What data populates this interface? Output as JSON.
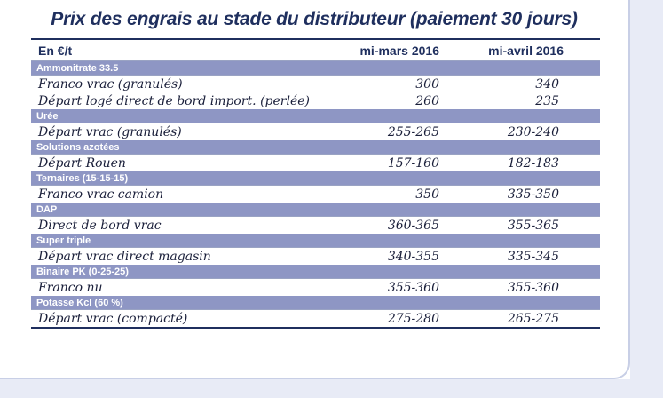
{
  "title": "Prix des engrais au stade du distributeur (paiement 30 jours)",
  "columns": [
    "En €/t",
    "mi-mars 2016",
    "mi-avril 2016"
  ],
  "groups": [
    {
      "category": "Ammonitrate 33.5",
      "rows": [
        {
          "label": "Franco vrac (granulés)",
          "mars": "300",
          "avril": "340"
        },
        {
          "label": "Départ logé direct de bord import. (perlée)",
          "mars": "260",
          "avril": "235"
        }
      ]
    },
    {
      "category": "Urée",
      "rows": [
        {
          "label": "Départ vrac (granulés)",
          "mars": "255-265",
          "avril": "230-240"
        }
      ]
    },
    {
      "category": "Solutions azotées",
      "rows": [
        {
          "label": "Départ Rouen",
          "mars": "157-160",
          "avril": "182-183"
        }
      ]
    },
    {
      "category": "Ternaires (15-15-15)",
      "rows": [
        {
          "label": "Franco vrac camion",
          "mars": "350",
          "avril": "335-350"
        }
      ]
    },
    {
      "category": "DAP",
      "rows": [
        {
          "label": "Direct de bord vrac",
          "mars": "360-365",
          "avril": "355-365"
        }
      ]
    },
    {
      "category": "Super triple",
      "rows": [
        {
          "label": "Départ vrac direct magasin",
          "mars": "340-355",
          "avril": "335-345"
        }
      ]
    },
    {
      "category": "Binaire PK (0-25-25)",
      "rows": [
        {
          "label": "Franco nu",
          "mars": "355-360",
          "avril": "355-360"
        }
      ]
    },
    {
      "category": "Potasse Kcl (60 %)",
      "rows": [
        {
          "label": "Départ vrac (compacté)",
          "mars": "275-280",
          "avril": "265-275"
        }
      ]
    }
  ],
  "colors": {
    "header_text": "#1f2f5e",
    "category_bg": "#8e96c4",
    "side_panel": "#e8ebf6"
  }
}
